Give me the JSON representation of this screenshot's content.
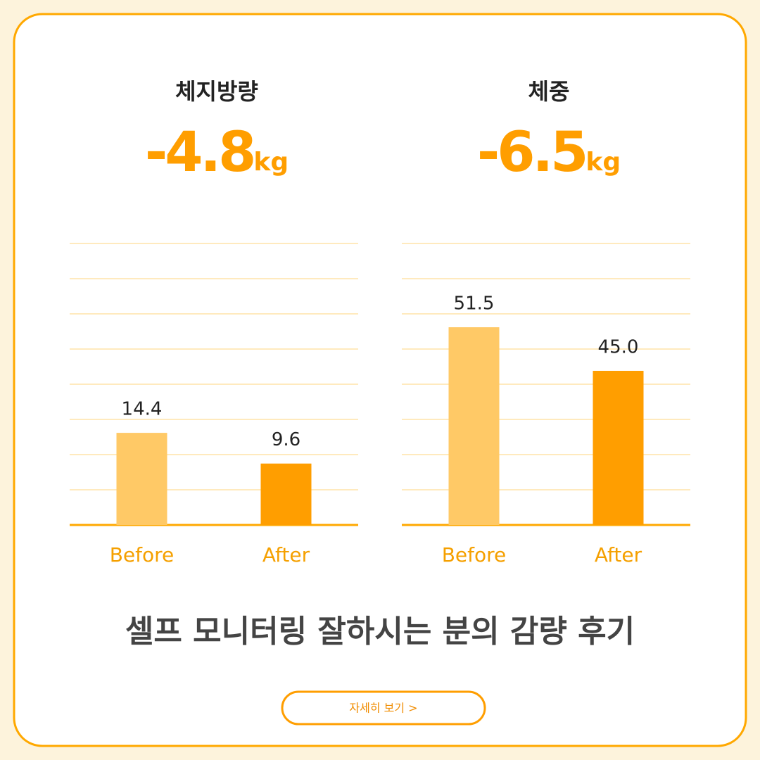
{
  "chart_data": [
    {
      "type": "bar",
      "title": "체지방량",
      "change": -4.8,
      "unit": "kg",
      "categories": [
        "Before",
        "After"
      ],
      "values": [
        14.4,
        9.6
      ],
      "value_labels": [
        "14.4",
        "9.6"
      ],
      "colors": [
        "#ffc966",
        "#ff9e00"
      ],
      "ylim": [
        0,
        44
      ]
    },
    {
      "type": "bar",
      "title": "체중",
      "change": -6.5,
      "unit": "kg",
      "categories": [
        "Before",
        "After"
      ],
      "values": [
        51.5,
        45.0
      ],
      "value_labels": [
        "51.5",
        "45.0"
      ],
      "colors": [
        "#ffc966",
        "#ff9e00"
      ],
      "ylim": [
        22,
        64
      ]
    }
  ],
  "headline": "셀프 모니터링 잘하시는 분의 감량 후기",
  "button": "자세히 보기 >"
}
